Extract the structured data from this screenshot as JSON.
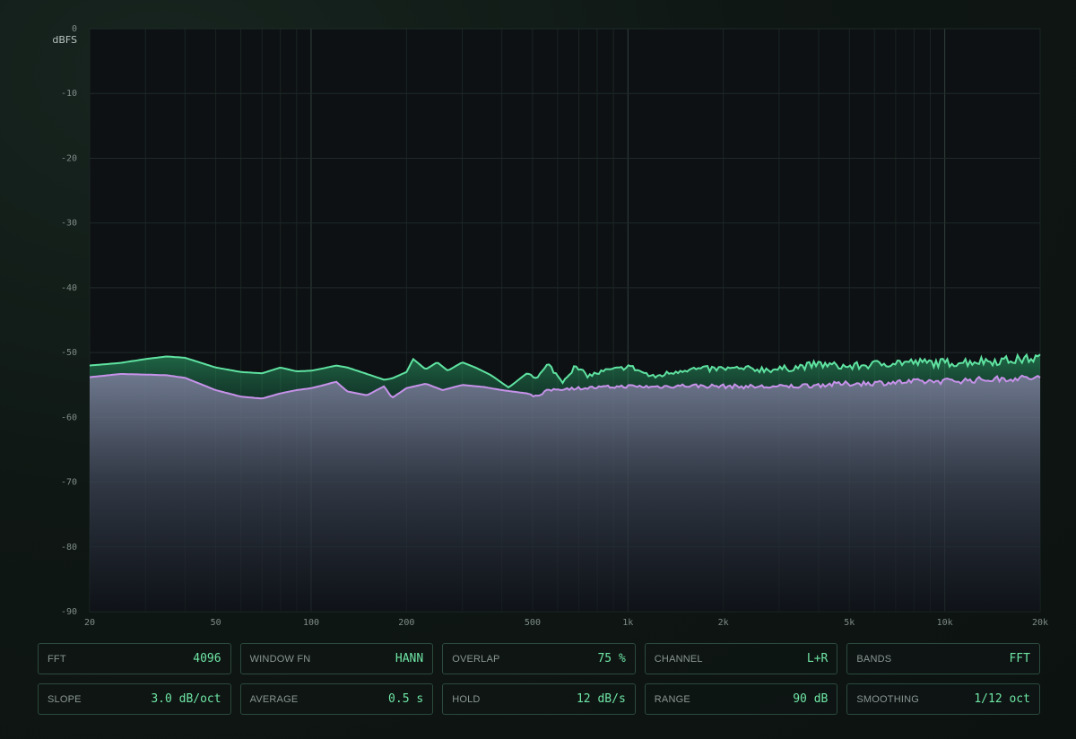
{
  "chart_data": {
    "type": "line",
    "xscale": "log",
    "ylabel": "dBFS",
    "xlim": [
      20,
      20000
    ],
    "ylim": [
      -90,
      0
    ],
    "x_ticks": [
      {
        "value": 20,
        "label": "20"
      },
      {
        "value": 50,
        "label": "50"
      },
      {
        "value": 100,
        "label": "100"
      },
      {
        "value": 200,
        "label": "200"
      },
      {
        "value": 500,
        "label": "500"
      },
      {
        "value": 1000,
        "label": "1k"
      },
      {
        "value": 2000,
        "label": "2k"
      },
      {
        "value": 5000,
        "label": "5k"
      },
      {
        "value": 10000,
        "label": "10k"
      },
      {
        "value": 20000,
        "label": "20k"
      }
    ],
    "y_ticks": [
      0,
      -10,
      -20,
      -30,
      -40,
      -50,
      -60,
      -70,
      -80,
      -90
    ],
    "grid": true,
    "series": [
      {
        "color": "#5fe3a1",
        "x": [
          20,
          25,
          30,
          35,
          40,
          50,
          60,
          70,
          80,
          90,
          100,
          110,
          120,
          130,
          150,
          170,
          180,
          200,
          210,
          230,
          250,
          270,
          300,
          330,
          370,
          420,
          480,
          520,
          560,
          620,
          680,
          750,
          850,
          950,
          1000,
          1200,
          1500,
          2000,
          3000,
          4000,
          5000,
          7000,
          10000,
          13000,
          16000,
          20000
        ],
        "values": [
          -52.0,
          -51.6,
          -51.0,
          -50.6,
          -50.8,
          -52.3,
          -53.0,
          -53.2,
          -52.3,
          -52.9,
          -52.8,
          -52.4,
          -52.0,
          -52.3,
          -53.3,
          -54.2,
          -54.0,
          -53.0,
          -51.0,
          -52.6,
          -51.5,
          -52.8,
          -51.5,
          -52.3,
          -53.5,
          -55.4,
          -53.2,
          -53.8,
          -51.8,
          -54.5,
          -52.2,
          -53.6,
          -52.8,
          -52.5,
          -52.0,
          -53.8,
          -52.6,
          -52.5,
          -52.6,
          -51.8,
          -52.2,
          -51.5,
          -51.6,
          -51.3,
          -51.2,
          -50.8
        ]
      },
      {
        "color": "#c792ea",
        "x": [
          20,
          25,
          30,
          35,
          40,
          50,
          60,
          70,
          80,
          90,
          100,
          110,
          120,
          130,
          150,
          170,
          180,
          200,
          230,
          260,
          300,
          350,
          400,
          480,
          520,
          560,
          620,
          700,
          800,
          1000,
          1200,
          1500,
          2000,
          3000,
          4000,
          5000,
          7000,
          10000,
          13000,
          16000,
          20000
        ],
        "values": [
          -53.8,
          -53.3,
          -53.4,
          -53.5,
          -53.9,
          -55.8,
          -56.8,
          -57.1,
          -56.3,
          -55.8,
          -55.5,
          -55.0,
          -54.5,
          -56.0,
          -56.6,
          -55.2,
          -57.0,
          -55.5,
          -54.8,
          -55.8,
          -55.0,
          -55.3,
          -55.8,
          -56.3,
          -56.8,
          -55.8,
          -55.6,
          -55.5,
          -55.4,
          -55.2,
          -55.3,
          -55.1,
          -55.2,
          -55.3,
          -55.0,
          -54.8,
          -54.6,
          -54.4,
          -54.2,
          -54.0,
          -53.9
        ]
      }
    ]
  },
  "params": [
    [
      {
        "label": "FFT",
        "value": "4096"
      },
      {
        "label": "WINDOW FN",
        "value": "HANN"
      },
      {
        "label": "OVERLAP",
        "value": "75 %"
      },
      {
        "label": "CHANNEL",
        "value": "L+R"
      },
      {
        "label": "BANDS",
        "value": "FFT"
      }
    ],
    [
      {
        "label": "SLOPE",
        "value": "3.0 dB/oct"
      },
      {
        "label": "AVERAGE",
        "value": "0.5 s"
      },
      {
        "label": "HOLD",
        "value": "12 dB/s"
      },
      {
        "label": "RANGE",
        "value": "90 dB"
      },
      {
        "label": "SMOOTHING",
        "value": "1/12 oct"
      }
    ]
  ]
}
